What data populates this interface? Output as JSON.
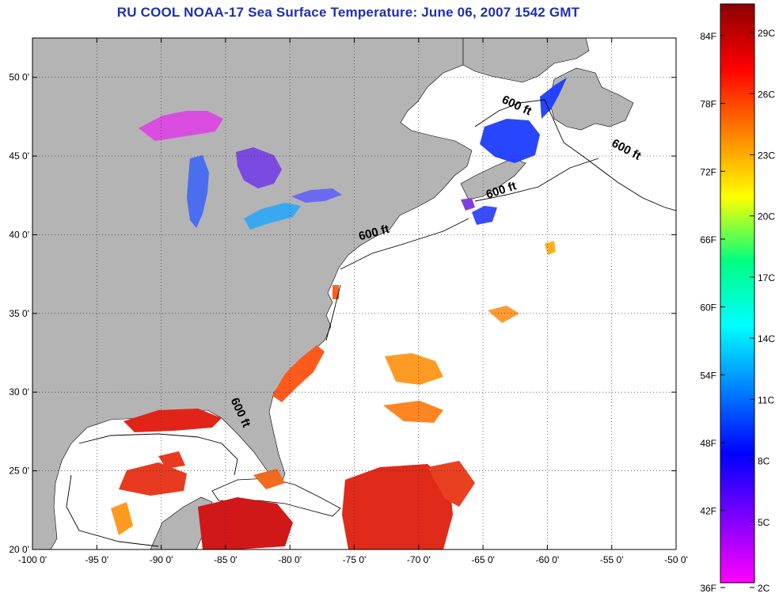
{
  "title": "RU COOL  NOAA-17  Sea Surface Temperature:  June 06, 2007 1542 GMT",
  "map": {
    "lon_range": [
      -100,
      -50
    ],
    "lat_range": [
      20,
      52.5
    ],
    "lon_ticks": [
      "-100 0'",
      "-95 0'",
      "-90 0'",
      "-85 0'",
      "-80 0'",
      "-75 0'",
      "-70 0'",
      "-65 0'",
      "-60 0'",
      "-55 0'",
      "-50 0'"
    ],
    "lat_ticks": [
      "20 0'",
      "25 0'",
      "30 0'",
      "35 0'",
      "40 0'",
      "45 0'",
      "50 0'"
    ],
    "grid": "dotted",
    "land_color": "#b4b4b4",
    "isobath_label": "600 ft",
    "isobath_labels": [
      {
        "text": "600 ft",
        "lon": -62.5,
        "lat": 48.0,
        "rot": 25
      },
      {
        "text": "600 ft",
        "lon": -54.0,
        "lat": 45.2,
        "rot": 28
      },
      {
        "text": "600 ft",
        "lon": -63.5,
        "lat": 42.6,
        "rot": -18
      },
      {
        "text": "600 ft",
        "lon": -73.4,
        "lat": 39.9,
        "rot": -15
      },
      {
        "text": "600 ft",
        "lon": -84.1,
        "lat": 28.6,
        "rot": 65
      }
    ]
  },
  "colorbar": {
    "fahrenheit_labels": [
      "84F",
      "78F",
      "72F",
      "66F",
      "60F",
      "54F",
      "48F",
      "42F",
      "36F"
    ],
    "celsius_labels": [
      "29C",
      "26C",
      "23C",
      "20C",
      "17C",
      "14C",
      "11C",
      "8C",
      "5C",
      "2C"
    ],
    "colors_top_to_bottom": [
      "#8b0000",
      "#ff0000",
      "#ff8000",
      "#ffff00",
      "#00ff80",
      "#00ffff",
      "#0080ff",
      "#0000ff",
      "#8000ff",
      "#ff00ff"
    ]
  }
}
